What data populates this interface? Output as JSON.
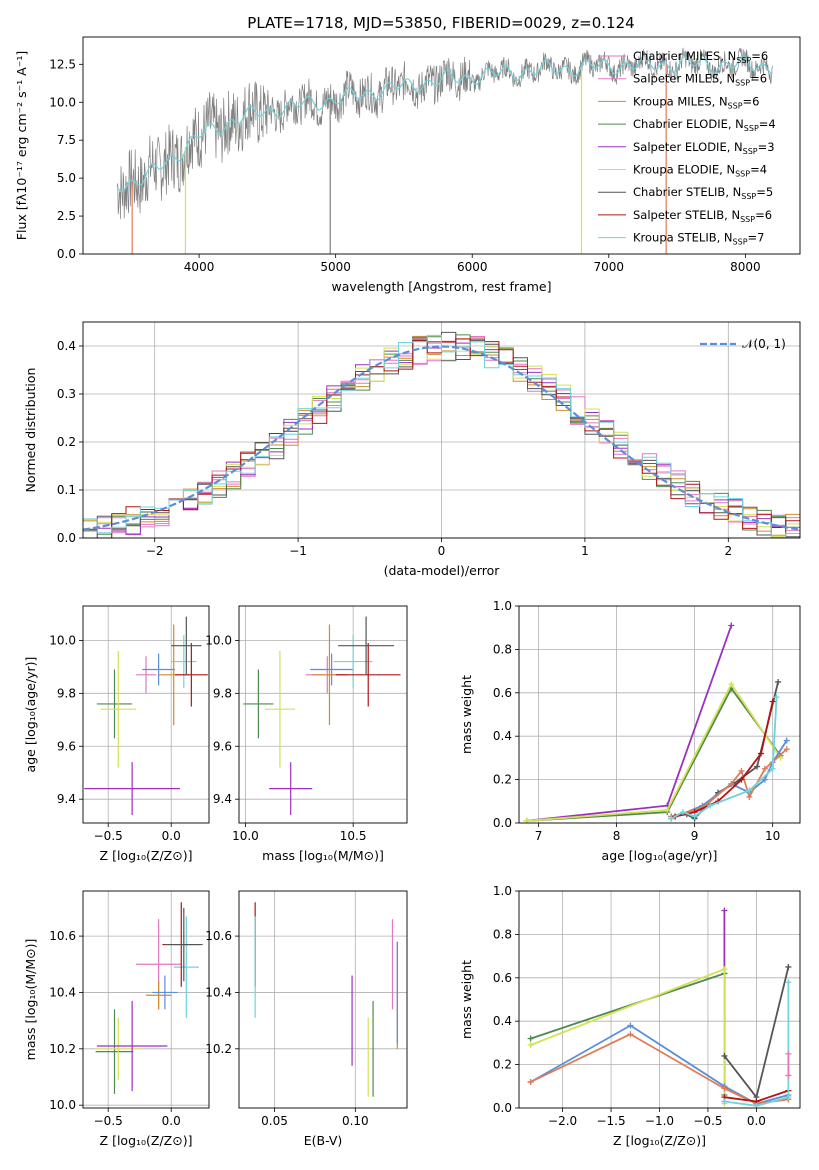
{
  "title": "PLATE=1718, MJD=53850, FIBERID=0029, z=0.124",
  "legend_entries": [
    {
      "label": "Chabrier MILES, N",
      "sub": "SSP",
      "suffix": "=6",
      "color": "#e377c2"
    },
    {
      "label": "Salpeter MILES, N",
      "sub": "SSP",
      "suffix": "=6",
      "color": "#e377c2"
    },
    {
      "label": "Kroupa MILES, N",
      "sub": "SSP",
      "suffix": "=6",
      "color": "#d18b2c"
    },
    {
      "label": "Chabrier ELODIE, N",
      "sub": "SSP",
      "suffix": "=4",
      "color": "#4e8a4e"
    },
    {
      "label": "Salpeter ELODIE, N",
      "sub": "SSP",
      "suffix": "=3",
      "color": "#9b30c0"
    },
    {
      "label": "Kroupa ELODIE, N",
      "sub": "SSP",
      "suffix": "=4",
      "color": "#d4e157"
    },
    {
      "label": "Chabrier STELIB, N",
      "sub": "SSP",
      "suffix": "=5",
      "color": "#555555"
    },
    {
      "label": "Salpeter STELIB, N",
      "sub": "SSP",
      "suffix": "=6",
      "color": "#b01515"
    },
    {
      "label": "Kroupa STELIB, N",
      "sub": "SSP",
      "suffix": "=7",
      "color": "#6fd3dc"
    }
  ],
  "chart_data": [
    {
      "type": "line",
      "xlabel": "wavelength [Angstrom, rest frame]",
      "ylabel": "Flux [fλ10⁻¹⁷ erg cm⁻² s⁻¹ A⁻¹]",
      "xlim": [
        3150,
        8400
      ],
      "ylim": [
        0,
        14.3
      ],
      "xticks": [
        4000,
        5000,
        6000,
        7000,
        8000
      ],
      "yticks": [
        0.0,
        2.5,
        5.0,
        7.5,
        10.0,
        12.5
      ],
      "data_color": "#808080",
      "model_color": "#6fd3dc",
      "continuum": {
        "x": [
          3400,
          3600,
          3800,
          4000,
          4300,
          4600,
          5000,
          5400,
          5800,
          6200,
          6600,
          7000,
          7400,
          7800,
          8200
        ],
        "y": [
          4.5,
          5.0,
          6.3,
          7.8,
          9.0,
          9.6,
          10.2,
          10.9,
          11.5,
          11.9,
          12.2,
          12.4,
          12.5,
          12.5,
          12.4
        ]
      }
    },
    {
      "type": "histogram",
      "xlabel": "(data-model)/error",
      "ylabel": "Normed distribution",
      "xlim": [
        -2.5,
        2.5
      ],
      "ylim": [
        0,
        0.45
      ],
      "xticks": [
        -2,
        -1,
        0,
        1,
        2
      ],
      "yticks": [
        0.0,
        0.1,
        0.2,
        0.3,
        0.4
      ],
      "legend": "𝒩(0, 1)",
      "bin_width": 0.1,
      "colors": [
        "#e377c2",
        "#e377c2",
        "#d18b2c",
        "#4e8a4e",
        "#9b30c0",
        "#d4e157",
        "#555555",
        "#b01515",
        "#6fd3dc"
      ],
      "gauss_color": "#5b8fd9"
    },
    {
      "type": "errorbar",
      "xlabel": "Z [log₁₀(Z/Z⊙)]",
      "ylabel": "age  [log₁₀(age/yr)]",
      "xlim": [
        -0.7,
        0.3
      ],
      "ylim": [
        9.31,
        10.13
      ],
      "xticks": [
        -0.5,
        0.0
      ],
      "yticks": [
        9.4,
        9.6,
        9.8,
        10.0
      ],
      "points": [
        {
          "x": -0.45,
          "y": 9.76,
          "xerr": 0.14,
          "yerr": 0.13,
          "color": "#4e8a4e"
        },
        {
          "x": -0.42,
          "y": 9.74,
          "xerr": 0.14,
          "yerr": 0.22,
          "color": "#d4e157"
        },
        {
          "x": -0.31,
          "y": 9.44,
          "xerr": 0.38,
          "yerr": 0.1,
          "color": "#9b30c0"
        },
        {
          "x": -0.2,
          "y": 9.87,
          "xerr": 0.08,
          "yerr": 0.07,
          "color": "#e377c2"
        },
        {
          "x": -0.1,
          "y": 9.89,
          "xerr": 0.13,
          "yerr": 0.06,
          "color": "#5b8fd9"
        },
        {
          "x": 0.02,
          "y": 9.87,
          "xerr": 0.12,
          "yerr": 0.19,
          "color": "#d18b2c"
        },
        {
          "x": 0.1,
          "y": 9.92,
          "xerr": 0.1,
          "yerr": 0.1,
          "color": "#6fd3dc"
        },
        {
          "x": 0.16,
          "y": 9.87,
          "xerr": 0.13,
          "yerr": 0.12,
          "color": "#b01515"
        },
        {
          "x": 0.12,
          "y": 9.98,
          "xerr": 0.12,
          "yerr": 0.11,
          "color": "#555555"
        }
      ]
    },
    {
      "type": "errorbar",
      "xlabel": "mass [log₁₀(M/M⊙)]",
      "ylabel": "",
      "xlim": [
        9.97,
        10.75
      ],
      "ylim": [
        9.31,
        10.13
      ],
      "xticks": [
        10.0,
        10.5
      ],
      "yticks": [
        9.4,
        9.6,
        9.8,
        10.0
      ],
      "points": [
        {
          "x": 10.06,
          "y": 9.76,
          "xerr": 0.07,
          "yerr": 0.13,
          "color": "#4e8a4e"
        },
        {
          "x": 10.16,
          "y": 9.74,
          "xerr": 0.07,
          "yerr": 0.22,
          "color": "#d4e157"
        },
        {
          "x": 10.21,
          "y": 9.44,
          "xerr": 0.1,
          "yerr": 0.1,
          "color": "#9b30c0"
        },
        {
          "x": 10.38,
          "y": 9.87,
          "xerr": 0.1,
          "yerr": 0.07,
          "color": "#e377c2"
        },
        {
          "x": 10.4,
          "y": 9.89,
          "xerr": 0.1,
          "yerr": 0.06,
          "color": "#5b8fd9"
        },
        {
          "x": 10.39,
          "y": 9.87,
          "xerr": 0.08,
          "yerr": 0.19,
          "color": "#d18b2c"
        },
        {
          "x": 10.5,
          "y": 9.92,
          "xerr": 0.09,
          "yerr": 0.1,
          "color": "#6fd3dc"
        },
        {
          "x": 10.57,
          "y": 9.87,
          "xerr": 0.15,
          "yerr": 0.12,
          "color": "#b01515"
        },
        {
          "x": 10.56,
          "y": 9.98,
          "xerr": 0.13,
          "yerr": 0.11,
          "color": "#555555"
        }
      ]
    },
    {
      "type": "line",
      "xlabel": "age  [log₁₀(age/yr)]",
      "ylabel": "mass weight",
      "xlim": [
        6.75,
        10.35
      ],
      "ylim": [
        0,
        1.0
      ],
      "xticks": [
        7,
        8,
        9,
        10
      ],
      "yticks": [
        0.0,
        0.2,
        0.4,
        0.6,
        0.8,
        1.0
      ],
      "series": [
        {
          "color": "#9b30c0",
          "x": [
            6.85,
            8.65,
            9.47
          ],
          "y": [
            0.01,
            0.08,
            0.91
          ]
        },
        {
          "color": "#4e8a4e",
          "x": [
            6.85,
            8.65,
            9.47,
            10.1
          ],
          "y": [
            0.01,
            0.05,
            0.62,
            0.31
          ]
        },
        {
          "color": "#d4e157",
          "x": [
            6.85,
            8.65,
            9.47,
            10.1
          ],
          "y": [
            0.01,
            0.06,
            0.64,
            0.3
          ]
        },
        {
          "color": "#555555",
          "x": [
            8.7,
            8.9,
            9.0,
            9.3,
            9.5,
            9.8,
            10.07
          ],
          "y": [
            0.03,
            0.04,
            0.02,
            0.14,
            0.18,
            0.26,
            0.65
          ]
        },
        {
          "color": "#5b8fd9",
          "x": [
            8.7,
            9.1,
            9.47,
            9.7,
            9.9,
            10.0,
            10.18
          ],
          "y": [
            0.02,
            0.08,
            0.18,
            0.14,
            0.2,
            0.28,
            0.38
          ]
        },
        {
          "color": "#e07b56",
          "x": [
            8.7,
            9.1,
            9.47,
            9.6,
            9.7,
            9.9,
            10.18
          ],
          "y": [
            0.03,
            0.07,
            0.18,
            0.24,
            0.12,
            0.25,
            0.34
          ]
        },
        {
          "color": "#b01515",
          "x": [
            8.75,
            9.0,
            9.3,
            9.6,
            9.85,
            10.0
          ],
          "y": [
            0.03,
            0.05,
            0.1,
            0.2,
            0.32,
            0.56
          ]
        },
        {
          "color": "#6fd3dc",
          "x": [
            8.7,
            8.85,
            9.0,
            9.2,
            9.7,
            10.0,
            10.05
          ],
          "y": [
            0.02,
            0.05,
            0.03,
            0.08,
            0.15,
            0.25,
            0.58
          ]
        }
      ]
    },
    {
      "type": "errorbar",
      "xlabel": "Z [log₁₀(Z/Z⊙)]",
      "ylabel": "mass [log₁₀(M/M⊙)]",
      "xlim": [
        -0.7,
        0.3
      ],
      "ylim": [
        9.99,
        10.76
      ],
      "xticks": [
        -0.5,
        0.0
      ],
      "yticks": [
        10.0,
        10.2,
        10.4,
        10.6
      ],
      "points": [
        {
          "x": -0.45,
          "y": 10.19,
          "xerr": 0.15,
          "yerr": 0.15,
          "color": "#4e8a4e"
        },
        {
          "x": -0.42,
          "y": 10.2,
          "xerr": 0.18,
          "yerr": 0.11,
          "color": "#d4e157"
        },
        {
          "x": -0.31,
          "y": 10.21,
          "xerr": 0.28,
          "yerr": 0.16,
          "color": "#9b30c0"
        },
        {
          "x": -0.1,
          "y": 10.5,
          "xerr": 0.18,
          "yerr": 0.16,
          "color": "#e377c2"
        },
        {
          "x": -0.1,
          "y": 10.39,
          "xerr": 0.1,
          "yerr": 0.05,
          "color": "#d18b2c"
        },
        {
          "x": -0.05,
          "y": 10.4,
          "xerr": 0.1,
          "yerr": 0.06,
          "color": "#5b8fd9"
        },
        {
          "x": 0.12,
          "y": 10.49,
          "xerr": 0.1,
          "yerr": 0.18,
          "color": "#6fd3dc"
        },
        {
          "x": 0.08,
          "y": 10.57,
          "xerr": 0.15,
          "yerr": 0.15,
          "color": "#b01515"
        },
        {
          "x": 0.1,
          "y": 10.57,
          "xerr": 0.15,
          "yerr": 0.13,
          "color": "#555555"
        }
      ]
    },
    {
      "type": "errorbar",
      "xlabel": "E(B-V)",
      "ylabel": "",
      "xlim": [
        0.028,
        0.132
      ],
      "ylim": [
        9.99,
        10.76
      ],
      "xticks": [
        0.05,
        0.1
      ],
      "yticks": [
        10.2,
        10.4,
        10.6
      ],
      "points": [
        {
          "x": 0.038,
          "y": 10.57,
          "yerr": 0.15,
          "color": "#b01515"
        },
        {
          "x": 0.038,
          "y": 10.49,
          "yerr": 0.18,
          "color": "#6fd3dc"
        },
        {
          "x": 0.098,
          "y": 10.3,
          "yerr": 0.16,
          "color": "#9b30c0"
        },
        {
          "x": 0.108,
          "y": 10.17,
          "yerr": 0.14,
          "color": "#d4e157"
        },
        {
          "x": 0.111,
          "y": 10.2,
          "yerr": 0.17,
          "color": "#4e8a4e"
        },
        {
          "x": 0.123,
          "y": 10.5,
          "yerr": 0.16,
          "color": "#e377c2"
        },
        {
          "x": 0.126,
          "y": 10.39,
          "yerr": 0.19,
          "color": "#d18b2c"
        },
        {
          "x": 0.126,
          "y": 10.4,
          "yerr": 0.18,
          "color": "#5b8fd9"
        }
      ]
    },
    {
      "type": "line",
      "xlabel": "Z [log₁₀(Z/Z⊙)]",
      "ylabel": "mass weight",
      "xlim": [
        -2.45,
        0.45
      ],
      "ylim": [
        0,
        1.0
      ],
      "xticks": [
        -2.0,
        -1.5,
        -1.0,
        -0.5,
        0.0
      ],
      "yticks": [
        0.0,
        0.2,
        0.4,
        0.6,
        0.8,
        1.0
      ],
      "series": [
        {
          "color": "#9b30c0",
          "x": [
            -0.33,
            -0.33
          ],
          "y": [
            0.03,
            0.91
          ]
        },
        {
          "color": "#4e8a4e",
          "x": [
            -2.33,
            -0.33,
            -0.33
          ],
          "y": [
            0.32,
            0.62,
            0.06
          ]
        },
        {
          "color": "#d4e157",
          "x": [
            -2.33,
            -0.33,
            -0.33
          ],
          "y": [
            0.29,
            0.64,
            0.02
          ]
        },
        {
          "color": "#5b8fd9",
          "x": [
            -2.33,
            -1.3,
            -0.33,
            0.0,
            0.33
          ],
          "y": [
            0.12,
            0.38,
            0.1,
            0.02,
            0.06
          ]
        },
        {
          "color": "#e07b56",
          "x": [
            -2.33,
            -1.3,
            -0.33,
            0.0,
            0.33
          ],
          "y": [
            0.12,
            0.34,
            0.09,
            0.02,
            0.04
          ]
        },
        {
          "color": "#555555",
          "x": [
            -0.33,
            0.0,
            0.33
          ],
          "y": [
            0.24,
            0.05,
            0.65
          ]
        },
        {
          "color": "#b01515",
          "x": [
            -0.33,
            0.0,
            0.33
          ],
          "y": [
            0.05,
            0.03,
            0.08
          ]
        },
        {
          "color": "#6fd3dc",
          "x": [
            -0.33,
            0.0,
            0.33,
            0.33
          ],
          "y": [
            0.03,
            0.01,
            0.05,
            0.58
          ]
        },
        {
          "color": "#e377c2",
          "x": [
            0.33,
            0.33
          ],
          "y": [
            0.25,
            0.15
          ]
        }
      ]
    }
  ]
}
